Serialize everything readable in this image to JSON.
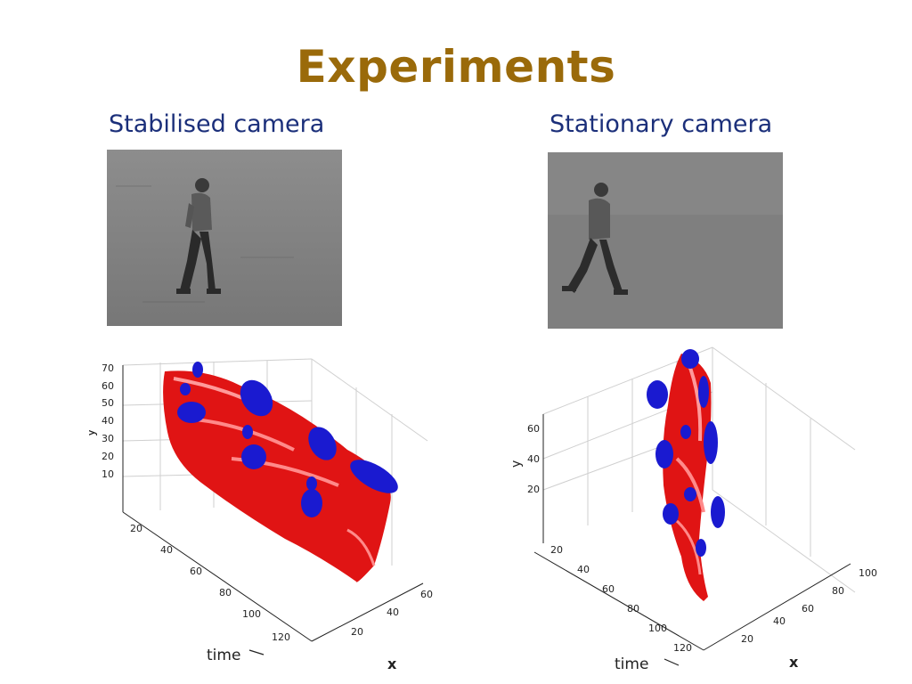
{
  "slide": {
    "title": "Experiments",
    "left_caption": "Stabilised camera",
    "right_caption": "Stationary camera"
  },
  "left_plot": {
    "y_label": "y",
    "time_label": "time",
    "x_label": "x",
    "y_ticks": [
      "70",
      "60",
      "50",
      "40",
      "30",
      "20",
      "10"
    ],
    "time_ticks": [
      "20",
      "40",
      "60",
      "80",
      "100",
      "120"
    ],
    "x_ticks": [
      "20",
      "40",
      "60"
    ]
  },
  "right_plot": {
    "y_label": "y",
    "time_label": "time",
    "x_label": "x",
    "y_ticks": [
      "60",
      "40",
      "20"
    ],
    "time_ticks": [
      "20",
      "40",
      "60",
      "80",
      "100",
      "120"
    ],
    "x_ticks": [
      "20",
      "40",
      "60",
      "80",
      "100"
    ]
  },
  "colors": {
    "title": "#9a6a0a",
    "caption": "#1b2f7a",
    "surface": "#e81010",
    "ellipsoid": "#1a1ad0"
  }
}
